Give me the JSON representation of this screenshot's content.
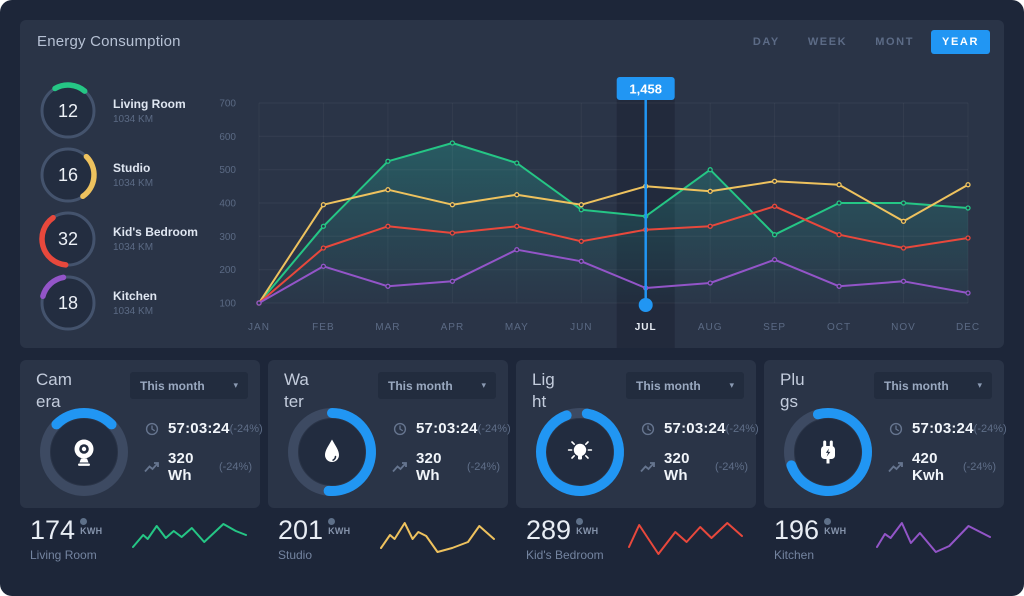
{
  "colors": {
    "accent_blue": "#2196f3",
    "green": "#25c685",
    "yellow": "#eec25e",
    "red": "#e8483c",
    "purple": "#9355c8"
  },
  "header": {
    "title": "Energy Consumption",
    "tabs": [
      {
        "label": "DAY",
        "active": false
      },
      {
        "label": "WEEK",
        "active": false
      },
      {
        "label": "MONT",
        "active": false
      },
      {
        "label": "YEAR",
        "active": true
      }
    ]
  },
  "gauges": [
    {
      "value": "12",
      "label": "Living Room",
      "sub": "1034 KM",
      "color": "#25c685",
      "arc": [
        -30,
        40
      ]
    },
    {
      "value": "16",
      "label": "Studio",
      "sub": "1034 KM",
      "color": "#eec25e",
      "arc": [
        45,
        145
      ]
    },
    {
      "value": "32",
      "label": "Kid's Bedroom",
      "sub": "1034 KM",
      "color": "#e8483c",
      "arc": [
        185,
        325
      ]
    },
    {
      "value": "18",
      "label": "Kitchen",
      "sub": "1034 KM",
      "color": "#9355c8",
      "arc": [
        285,
        350
      ]
    }
  ],
  "chart_data": {
    "type": "line",
    "categories": [
      "JAN",
      "FEB",
      "MAR",
      "APR",
      "MAY",
      "JUN",
      "JUL",
      "AUG",
      "SEP",
      "OCT",
      "NOV",
      "DEC"
    ],
    "yticks": [
      100,
      200,
      300,
      400,
      500,
      600,
      700
    ],
    "ylim": [
      100,
      700
    ],
    "grid": true,
    "legend": "none",
    "series": [
      {
        "name": "Living Room",
        "color": "#25c685",
        "area": true,
        "values": [
          100,
          330,
          525,
          580,
          520,
          380,
          360,
          500,
          305,
          400,
          400,
          385
        ]
      },
      {
        "name": "Studio",
        "color": "#eec25e",
        "area": false,
        "values": [
          100,
          395,
          440,
          395,
          425,
          395,
          450,
          435,
          465,
          455,
          345,
          455
        ]
      },
      {
        "name": "Kid's Bedroom",
        "color": "#e8483c",
        "area": false,
        "values": [
          100,
          265,
          330,
          310,
          330,
          285,
          320,
          330,
          390,
          305,
          265,
          295
        ]
      },
      {
        "name": "Kitchen",
        "color": "#9355c8",
        "area": false,
        "values": [
          100,
          210,
          150,
          165,
          260,
          225,
          145,
          160,
          230,
          150,
          165,
          130
        ]
      }
    ],
    "highlight": {
      "category": "JUL",
      "tooltip": "1,458"
    }
  },
  "cards": [
    {
      "title": "Camera",
      "title_lines": "Cam\nera",
      "dropdown": "This month",
      "progress": {
        "arc": [
          -45,
          45
        ]
      },
      "stats": [
        {
          "icon": "clock",
          "value": "57:03:24",
          "delta": "(-24%)"
        },
        {
          "icon": "trend-up",
          "value": "320 Wh",
          "delta": "(-24%)"
        }
      ]
    },
    {
      "title": "Water",
      "title_lines": "Wa\nter",
      "dropdown": "This month",
      "progress": {
        "arc": [
          0,
          185
        ]
      },
      "stats": [
        {
          "icon": "clock",
          "value": "57:03:24",
          "delta": "(-24%)"
        },
        {
          "icon": "trend-up",
          "value": "320 Wh",
          "delta": "(-24%)"
        }
      ]
    },
    {
      "title": "Light",
      "title_lines": "Lig\nht",
      "dropdown": "This month",
      "progress": {
        "arc": [
          10,
          340
        ]
      },
      "stats": [
        {
          "icon": "clock",
          "value": "57:03:24",
          "delta": "(-24%)"
        },
        {
          "icon": "trend-up",
          "value": "320 Wh",
          "delta": "(-24%)"
        }
      ]
    },
    {
      "title": "Plugs",
      "title_lines": "Plu\ngs",
      "dropdown": "This month",
      "progress": {
        "arc": [
          -15,
          250
        ]
      },
      "stats": [
        {
          "icon": "clock",
          "value": "57:03:24",
          "delta": "(-24%)"
        },
        {
          "icon": "trend-up",
          "value": "420 Kwh",
          "delta": "(-24%)"
        }
      ]
    }
  ],
  "bottom_stats": [
    {
      "value": "174",
      "unit": "KWH",
      "label": "Living Room",
      "color": "#25c685",
      "spark": [
        [
          0,
          26
        ],
        [
          9,
          14
        ],
        [
          13,
          18
        ],
        [
          21,
          5
        ],
        [
          29,
          17
        ],
        [
          36,
          10
        ],
        [
          43,
          16
        ],
        [
          52,
          7
        ],
        [
          63,
          21
        ],
        [
          80,
          3
        ],
        [
          91,
          10
        ],
        [
          100,
          14
        ]
      ]
    },
    {
      "value": "201",
      "unit": "KWH",
      "label": "Studio",
      "color": "#eec25e",
      "spark": [
        [
          0,
          27
        ],
        [
          8,
          14
        ],
        [
          12,
          18
        ],
        [
          21,
          2
        ],
        [
          28,
          18
        ],
        [
          33,
          11
        ],
        [
          40,
          15
        ],
        [
          50,
          31
        ],
        [
          63,
          27
        ],
        [
          77,
          21
        ],
        [
          87,
          5
        ],
        [
          100,
          18
        ]
      ]
    },
    {
      "value": "289",
      "unit": "KWH",
      "label": "Kid's Bedroom",
      "color": "#e8483c",
      "spark": [
        [
          0,
          26
        ],
        [
          9,
          4
        ],
        [
          26,
          33
        ],
        [
          41,
          11
        ],
        [
          51,
          21
        ],
        [
          63,
          6
        ],
        [
          73,
          17
        ],
        [
          87,
          2
        ],
        [
          100,
          15
        ]
      ]
    },
    {
      "value": "196",
      "unit": "KWH",
      "label": "Kitchen",
      "color": "#9355c8",
      "spark": [
        [
          0,
          26
        ],
        [
          7,
          13
        ],
        [
          12,
          17
        ],
        [
          22,
          2
        ],
        [
          30,
          22
        ],
        [
          38,
          12
        ],
        [
          52,
          31
        ],
        [
          64,
          25
        ],
        [
          81,
          5
        ],
        [
          100,
          16
        ]
      ]
    }
  ]
}
